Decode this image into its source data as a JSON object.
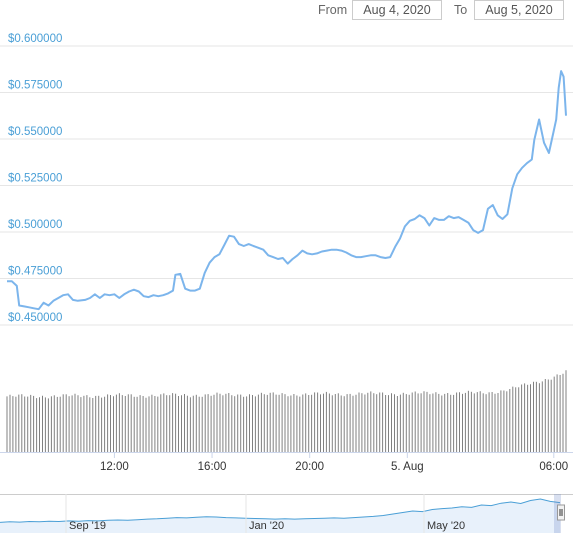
{
  "range_selector": {
    "from_label": "From",
    "from_value": "Aug 4, 2020",
    "to_label": "To",
    "to_value": "Aug 5, 2020"
  },
  "colors": {
    "line": "#7cb5ec",
    "grid": "#e6e6e6",
    "ytick": "#4a9fd6",
    "volume": "#808080",
    "navigator_line": "#4a9fd6",
    "navigator_fill": "#e8f1fb"
  },
  "chart_data": {
    "type": "line",
    "title": "",
    "xlabel": "",
    "ylabel": "",
    "ylim": [
      0.45,
      0.6
    ],
    "xlim": [
      7.6,
      30.5
    ],
    "yticks": [
      "$0.600000",
      "$0.575000",
      "$0.550000",
      "$0.525000",
      "$0.500000",
      "$0.475000",
      "$0.450000"
    ],
    "ytick_values": [
      0.6,
      0.575,
      0.55,
      0.525,
      0.5,
      0.475,
      0.45
    ],
    "xticks": [
      {
        "label": "12:00",
        "t": 12
      },
      {
        "label": "16:00",
        "t": 16
      },
      {
        "label": "20:00",
        "t": 20
      },
      {
        "label": "5. Aug",
        "t": 24
      },
      {
        "label": "06:00",
        "t": 30
      }
    ],
    "series": [
      {
        "values": [
          [
            7.6,
            0.4735
          ],
          [
            7.8,
            0.4735
          ],
          [
            8.0,
            0.471
          ],
          [
            8.1,
            0.4605
          ],
          [
            8.3,
            0.46
          ],
          [
            8.5,
            0.4595
          ],
          [
            8.7,
            0.459
          ],
          [
            8.9,
            0.4585
          ],
          [
            9.1,
            0.462
          ],
          [
            9.3,
            0.4605
          ],
          [
            9.5,
            0.463
          ],
          [
            9.7,
            0.4645
          ],
          [
            9.9,
            0.466
          ],
          [
            10.1,
            0.4665
          ],
          [
            10.3,
            0.4635
          ],
          [
            10.5,
            0.463
          ],
          [
            10.8,
            0.4635
          ],
          [
            11.0,
            0.4645
          ],
          [
            11.2,
            0.4665
          ],
          [
            11.4,
            0.4645
          ],
          [
            11.6,
            0.4665
          ],
          [
            11.8,
            0.466
          ],
          [
            12.0,
            0.4665
          ],
          [
            12.2,
            0.4645
          ],
          [
            12.4,
            0.4665
          ],
          [
            12.6,
            0.468
          ],
          [
            12.8,
            0.469
          ],
          [
            13.0,
            0.468
          ],
          [
            13.2,
            0.4655
          ],
          [
            13.4,
            0.465
          ],
          [
            13.6,
            0.466
          ],
          [
            13.8,
            0.4655
          ],
          [
            14.0,
            0.466
          ],
          [
            14.2,
            0.467
          ],
          [
            14.4,
            0.4685
          ],
          [
            14.5,
            0.477
          ],
          [
            14.7,
            0.4775
          ],
          [
            14.9,
            0.4695
          ],
          [
            15.1,
            0.4685
          ],
          [
            15.3,
            0.4685
          ],
          [
            15.5,
            0.4695
          ],
          [
            15.7,
            0.478
          ],
          [
            15.9,
            0.4835
          ],
          [
            16.1,
            0.4865
          ],
          [
            16.3,
            0.488
          ],
          [
            16.5,
            0.493
          ],
          [
            16.7,
            0.498
          ],
          [
            16.9,
            0.4975
          ],
          [
            17.1,
            0.4935
          ],
          [
            17.3,
            0.4925
          ],
          [
            17.5,
            0.4935
          ],
          [
            17.7,
            0.4925
          ],
          [
            17.9,
            0.4915
          ],
          [
            18.1,
            0.4905
          ],
          [
            18.3,
            0.4875
          ],
          [
            18.5,
            0.4865
          ],
          [
            18.7,
            0.4855
          ],
          [
            18.9,
            0.486
          ],
          [
            19.1,
            0.483
          ],
          [
            19.3,
            0.4855
          ],
          [
            19.5,
            0.4875
          ],
          [
            19.7,
            0.49
          ],
          [
            19.9,
            0.4885
          ],
          [
            20.1,
            0.488
          ],
          [
            20.3,
            0.4885
          ],
          [
            20.5,
            0.4895
          ],
          [
            20.7,
            0.49
          ],
          [
            20.9,
            0.4905
          ],
          [
            21.1,
            0.4905
          ],
          [
            21.3,
            0.49
          ],
          [
            21.5,
            0.489
          ],
          [
            21.7,
            0.4875
          ],
          [
            21.9,
            0.4865
          ],
          [
            22.1,
            0.4865
          ],
          [
            22.3,
            0.487
          ],
          [
            22.5,
            0.4875
          ],
          [
            22.7,
            0.4875
          ],
          [
            22.9,
            0.4865
          ],
          [
            23.1,
            0.486
          ],
          [
            23.3,
            0.4865
          ],
          [
            23.5,
            0.492
          ],
          [
            23.7,
            0.4965
          ],
          [
            23.9,
            0.503
          ],
          [
            24.1,
            0.506
          ],
          [
            24.3,
            0.507
          ],
          [
            24.5,
            0.509
          ],
          [
            24.7,
            0.5075
          ],
          [
            24.9,
            0.5035
          ],
          [
            25.1,
            0.5075
          ],
          [
            25.3,
            0.5065
          ],
          [
            25.5,
            0.5065
          ],
          [
            25.7,
            0.5085
          ],
          [
            25.9,
            0.5075
          ],
          [
            26.1,
            0.508
          ],
          [
            26.3,
            0.5065
          ],
          [
            26.5,
            0.505
          ],
          [
            26.7,
            0.501
          ],
          [
            26.9,
            0.4995
          ],
          [
            27.1,
            0.501
          ],
          [
            27.3,
            0.5125
          ],
          [
            27.5,
            0.5145
          ],
          [
            27.7,
            0.509
          ],
          [
            27.9,
            0.507
          ],
          [
            28.1,
            0.5095
          ],
          [
            28.3,
            0.5235
          ],
          [
            28.5,
            0.531
          ],
          [
            28.7,
            0.5345
          ],
          [
            28.9,
            0.537
          ],
          [
            29.1,
            0.539
          ],
          [
            29.2,
            0.5495
          ],
          [
            29.4,
            0.5605
          ],
          [
            29.6,
            0.548
          ],
          [
            29.8,
            0.5425
          ],
          [
            30.0,
            0.5545
          ],
          [
            30.1,
            0.5605
          ],
          [
            30.2,
            0.5775
          ],
          [
            30.3,
            0.5865
          ],
          [
            30.4,
            0.5835
          ],
          [
            30.5,
            0.5625
          ]
        ]
      }
    ],
    "volume": {
      "start_level": 0.32,
      "mid_level": 0.34,
      "end_level": 0.46
    },
    "navigator": {
      "xticks": [
        "Sep '19",
        "Jan '20",
        "May '20"
      ],
      "series": [
        0.22,
        0.24,
        0.23,
        0.25,
        0.24,
        0.26,
        0.25,
        0.27,
        0.26,
        0.28,
        0.27,
        0.29,
        0.3,
        0.29,
        0.31,
        0.33,
        0.34,
        0.36,
        0.38,
        0.37,
        0.39,
        0.41,
        0.4,
        0.38,
        0.37,
        0.36,
        0.35,
        0.34,
        0.33,
        0.34,
        0.33,
        0.34,
        0.35,
        0.36,
        0.37,
        0.36,
        0.38,
        0.4,
        0.42,
        0.45,
        0.5,
        0.55,
        0.6,
        0.58,
        0.65,
        0.68,
        0.7,
        0.74,
        0.72,
        0.8,
        0.78,
        0.86,
        0.9,
        0.85,
        0.95,
        1.0,
        0.92,
        0.88
      ]
    }
  }
}
